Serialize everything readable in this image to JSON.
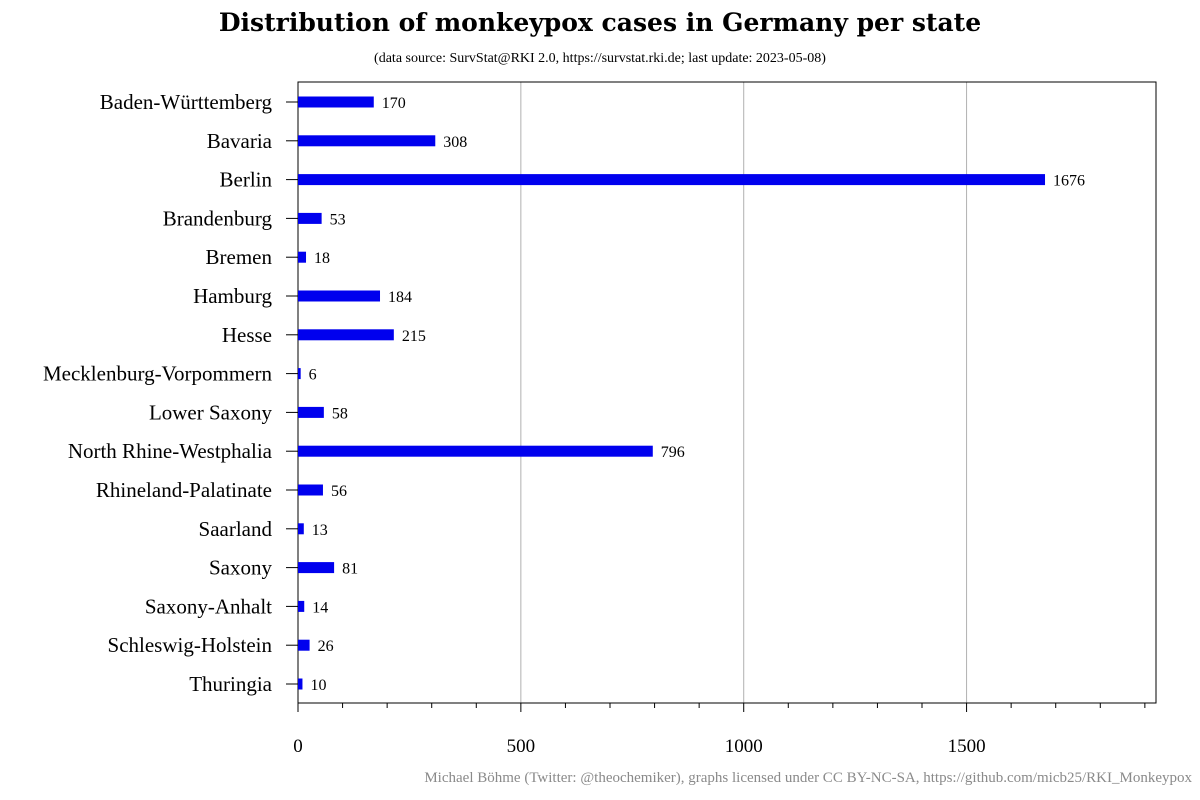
{
  "chart_data": {
    "type": "bar",
    "orientation": "horizontal",
    "title": "Distribution of monkeypox cases in Germany per state",
    "subtitle": "(data source: SurvStat@RKI 2.0, https://survstat.rki.de; last update: 2023-05-08)",
    "categories": [
      "Baden-Württemberg",
      "Bavaria",
      "Berlin",
      "Brandenburg",
      "Bremen",
      "Hamburg",
      "Hesse",
      "Mecklenburg-Vorpommern",
      "Lower Saxony",
      "North Rhine-Westphalia",
      "Rhineland-Palatinate",
      "Saarland",
      "Saxony",
      "Saxony-Anhalt",
      "Schleswig-Holstein",
      "Thuringia"
    ],
    "values": [
      170,
      308,
      1676,
      53,
      18,
      184,
      215,
      6,
      58,
      796,
      56,
      13,
      81,
      14,
      26,
      10
    ],
    "xlim": [
      0,
      1925
    ],
    "xticks": [
      0,
      500,
      1000,
      1500
    ],
    "xminor_step": 100,
    "grid": "vertical",
    "bar_color": "#0000ee",
    "grid_color": "#b0b0b0",
    "xlabel": "",
    "ylabel": ""
  },
  "footer": "Michael Böhme (Twitter: @theochemiker), graphs licensed under CC BY-NC-SA, https://github.com/micb25/RKI_Monkeypox"
}
